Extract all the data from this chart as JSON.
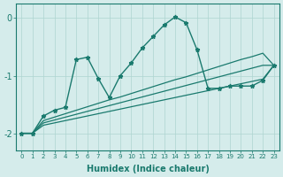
{
  "x": [
    0,
    1,
    2,
    3,
    4,
    5,
    6,
    7,
    8,
    9,
    10,
    11,
    12,
    13,
    14,
    15,
    16,
    17,
    18,
    19,
    20,
    21,
    22,
    23
  ],
  "line_main": [
    -2.0,
    -2.0,
    -1.7,
    -1.6,
    -1.55,
    -0.72,
    -0.68,
    -1.05,
    -1.38,
    -1.0,
    -0.78,
    -0.52,
    -0.32,
    -0.12,
    0.02,
    -0.08,
    -0.55,
    -1.22,
    -1.22,
    -1.18,
    -1.18,
    -1.18,
    -1.08,
    -0.82
  ],
  "line_trend1": [
    -2.0,
    -2.0,
    -1.78,
    -1.72,
    -1.66,
    -1.6,
    -1.54,
    -1.48,
    -1.42,
    -1.37,
    -1.31,
    -1.25,
    -1.19,
    -1.13,
    -1.07,
    -1.02,
    -0.96,
    -0.9,
    -0.84,
    -0.78,
    -0.72,
    -0.67,
    -0.61,
    -0.82
  ],
  "line_trend2": [
    -2.0,
    -2.0,
    -1.82,
    -1.77,
    -1.72,
    -1.67,
    -1.62,
    -1.57,
    -1.52,
    -1.47,
    -1.42,
    -1.37,
    -1.32,
    -1.27,
    -1.22,
    -1.17,
    -1.12,
    -1.07,
    -1.02,
    -0.97,
    -0.92,
    -0.87,
    -0.82,
    -0.82
  ],
  "line_trend3": [
    -2.0,
    -2.0,
    -1.86,
    -1.82,
    -1.78,
    -1.74,
    -1.7,
    -1.66,
    -1.62,
    -1.58,
    -1.54,
    -1.5,
    -1.46,
    -1.42,
    -1.38,
    -1.34,
    -1.3,
    -1.26,
    -1.22,
    -1.18,
    -1.14,
    -1.1,
    -1.06,
    -0.82
  ],
  "color": "#1a7a6e",
  "bg_color": "#d5eceb",
  "grid_color": "#aed4d0",
  "xlabel": "Humidex (Indice chaleur)",
  "ylim": [
    -2.3,
    0.25
  ],
  "xlim": [
    -0.5,
    23.5
  ],
  "yticks": [
    0,
    -1,
    -2
  ],
  "xticks": [
    0,
    1,
    2,
    3,
    4,
    5,
    6,
    7,
    8,
    9,
    10,
    11,
    12,
    13,
    14,
    15,
    16,
    17,
    18,
    19,
    20,
    21,
    22,
    23
  ]
}
